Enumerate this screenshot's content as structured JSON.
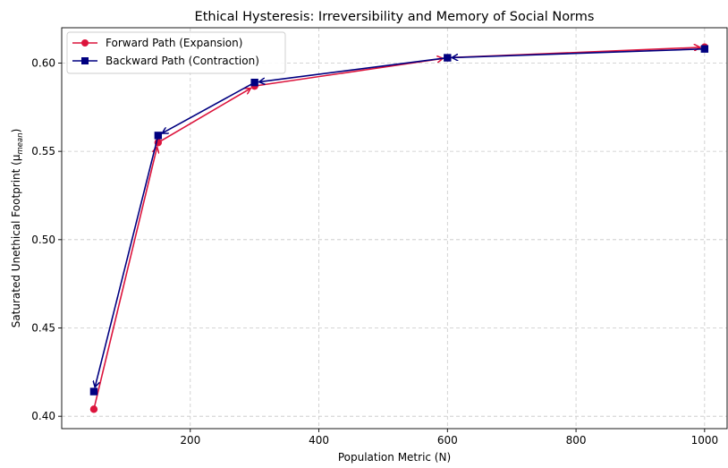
{
  "chart_data": {
    "type": "line",
    "title": "Ethical Hysteresis: Irreversibility and Memory of Social Norms",
    "xlabel": "Population Metric (N)",
    "ylabel": "Saturated Unethical Footprint (μ",
    "ylabel_sub": "mean",
    "ylabel_close": ")",
    "xlim": [
      0,
      1035
    ],
    "ylim": [
      0.393,
      0.62
    ],
    "xticks": [
      200,
      400,
      600,
      800,
      1000
    ],
    "yticks": [
      0.4,
      0.45,
      0.5,
      0.55,
      0.6
    ],
    "xtick_labels": [
      "200",
      "400",
      "600",
      "800",
      "1000"
    ],
    "ytick_labels": [
      "0.40",
      "0.45",
      "0.50",
      "0.55",
      "0.60"
    ],
    "grid": true,
    "legend_position": "top-left",
    "series": [
      {
        "name": "Forward Path (Expansion)",
        "color": "#dc143c",
        "marker": "circle",
        "direction": "forward",
        "x": [
          50,
          150,
          300,
          600,
          1000
        ],
        "y": [
          0.404,
          0.555,
          0.587,
          0.603,
          0.609
        ]
      },
      {
        "name": "Backward Path (Contraction)",
        "color": "#000080",
        "marker": "square",
        "direction": "backward",
        "x": [
          50,
          150,
          300,
          600,
          1000
        ],
        "y": [
          0.414,
          0.559,
          0.589,
          0.603,
          0.608
        ]
      }
    ]
  }
}
